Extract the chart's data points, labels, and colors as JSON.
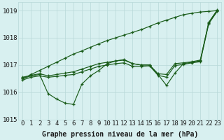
{
  "title": "Graphe pression niveau de la mer (hPa)",
  "background_color": "#d8f0f0",
  "grid_color": "#b8d8d8",
  "line_color": "#1a5c1a",
  "x_labels": [
    "0",
    "1",
    "2",
    "3",
    "4",
    "5",
    "6",
    "7",
    "8",
    "9",
    "10",
    "11",
    "12",
    "13",
    "14",
    "15",
    "16",
    "17",
    "18",
    "19",
    "20",
    "21",
    "22",
    "23"
  ],
  "hours": [
    0,
    1,
    2,
    3,
    4,
    5,
    6,
    7,
    8,
    9,
    10,
    11,
    12,
    13,
    14,
    15,
    16,
    17,
    18,
    19,
    20,
    21,
    22,
    23
  ],
  "series_linear": [
    1016.5,
    1016.65,
    1016.8,
    1016.95,
    1017.1,
    1017.25,
    1017.4,
    1017.52,
    1017.65,
    1017.78,
    1017.9,
    1018.0,
    1018.1,
    1018.2,
    1018.3,
    1018.42,
    1018.55,
    1018.65,
    1018.75,
    1018.85,
    1018.9,
    1018.95,
    1018.97,
    1019.0
  ],
  "series_wavy": [
    1016.5,
    1016.6,
    1016.65,
    1015.95,
    1015.75,
    1015.6,
    1015.55,
    1016.3,
    1016.6,
    1016.8,
    1017.05,
    1017.15,
    1017.2,
    1017.05,
    1017.0,
    1017.0,
    1016.65,
    1016.25,
    1016.7,
    1017.05,
    1017.1,
    1017.15,
    1018.55,
    1019.0
  ],
  "series_high": [
    1016.55,
    1016.62,
    1016.68,
    1016.6,
    1016.65,
    1016.7,
    1016.75,
    1016.85,
    1016.95,
    1017.05,
    1017.1,
    1017.15,
    1017.18,
    1017.05,
    1017.0,
    1017.0,
    1016.68,
    1016.65,
    1017.05,
    1017.08,
    1017.12,
    1017.18,
    1018.57,
    1019.02
  ],
  "series_low": [
    1016.45,
    1016.55,
    1016.6,
    1016.55,
    1016.58,
    1016.62,
    1016.65,
    1016.75,
    1016.85,
    1016.95,
    1017.0,
    1017.05,
    1017.08,
    1016.95,
    1016.95,
    1016.97,
    1016.62,
    1016.55,
    1016.98,
    1017.02,
    1017.08,
    1017.12,
    1018.52,
    1018.97
  ],
  "ylim": [
    1015.0,
    1019.3
  ],
  "yticks": [
    1015,
    1016,
    1017,
    1018,
    1019
  ],
  "tick_fontsize": 6.5,
  "title_fontsize": 7.0
}
